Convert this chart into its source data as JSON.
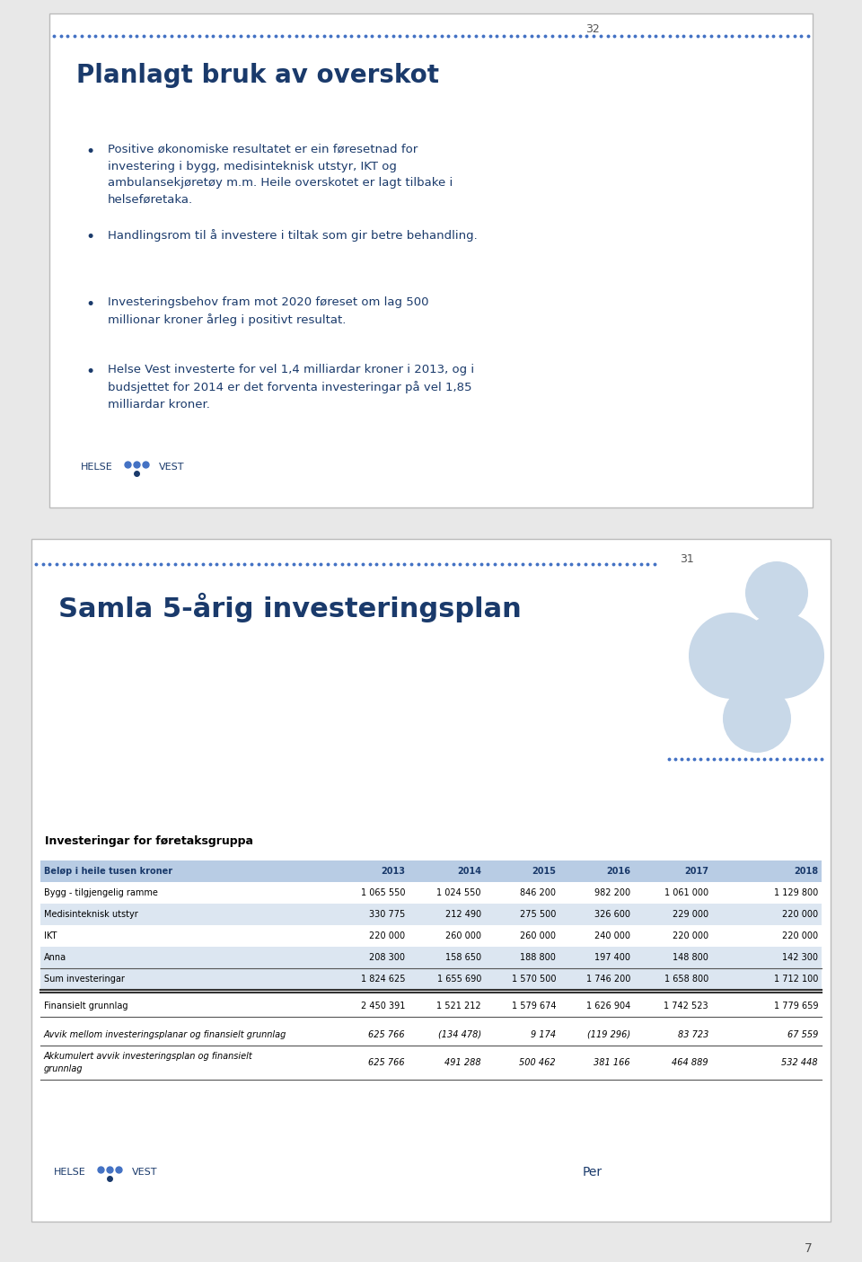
{
  "page_bg": "#e8e8e8",
  "slide1": {
    "title": "Planlagt bruk av overskot",
    "title_color": "#1a3a6b",
    "title_fontsize": 20,
    "page_num": "32",
    "dotted_line_color": "#4472c4",
    "bullets": [
      "Positive økonomiske resultatet er ein føresetnad for\ninvestering i bygg, medisinteknisk utstyr, IKT og\nambulansekjøretøy m.m. Heile overskotet er lagt tilbake i\nhelseføretaka.",
      "Handlingsrom til å investere i tiltak som gir betre behandling.",
      "Investeringsbehov fram mot 2020 føreset om lag 500\nmillionar kroner årleg i positivt resultat.",
      "Helse Vest investerte for vel 1,4 milliardar kroner i 2013, og i\nbudsjettet for 2014 er det forventa investeringar på vel 1,85\nmilliardar kroner."
    ],
    "bullet_color": "#1a3a6b",
    "bullet_fontsize": 9.5,
    "logo_color": "#1a3a6b"
  },
  "slide2": {
    "title": "Samla 5-årig investeringsplan",
    "title_color": "#1a3a6b",
    "title_fontsize": 22,
    "page_num": "31",
    "dotted_line_color": "#4472c4",
    "subtitle": "Investeringar for føretaksgruppa",
    "table_header_bg": "#b8cce4",
    "table_header_color": "#1a3a6b",
    "table_row_bg_alt": "#dce6f1",
    "columns": [
      "Beløp i heile tusen kroner",
      "2013",
      "2014",
      "2015",
      "2016",
      "2017",
      "2018"
    ],
    "rows": [
      [
        "Bygg - tilgjengelig ramme",
        "1 065 550",
        "1 024 550",
        "846 200",
        "982 200",
        "1 061 000",
        "1 129 800"
      ],
      [
        "Medisinteknisk utstyr",
        "330 775",
        "212 490",
        "275 500",
        "326 600",
        "229 000",
        "220 000"
      ],
      [
        "IKT",
        "220 000",
        "260 000",
        "260 000",
        "240 000",
        "220 000",
        "220 000"
      ],
      [
        "Anna",
        "208 300",
        "158 650",
        "188 800",
        "197 400",
        "148 800",
        "142 300"
      ]
    ],
    "sum_row": [
      "Sum investeringar",
      "1 824 625",
      "1 655 690",
      "1 570 500",
      "1 746 200",
      "1 658 800",
      "1 712 100"
    ],
    "finansielt_row": [
      "Finansielt grunnlag",
      "2 450 391",
      "1 521 212",
      "1 579 674",
      "1 626 904",
      "1 742 523",
      "1 779 659"
    ],
    "avvik_row": [
      "Avvik mellom investeringsplanar og finansielt grunnlag",
      "625 766",
      "(134 478)",
      "9 174",
      "(119 296)",
      "83 723",
      "67 559"
    ],
    "akkumulert_row": [
      "Akkumulert avvik investeringsplan og finansielt\ngrunnlag",
      "625 766",
      "491 288",
      "500 462",
      "381 166",
      "464 889",
      "532 448"
    ],
    "footer_per": "Per",
    "logo_color": "#1a3a6b",
    "page_footer": "7"
  }
}
